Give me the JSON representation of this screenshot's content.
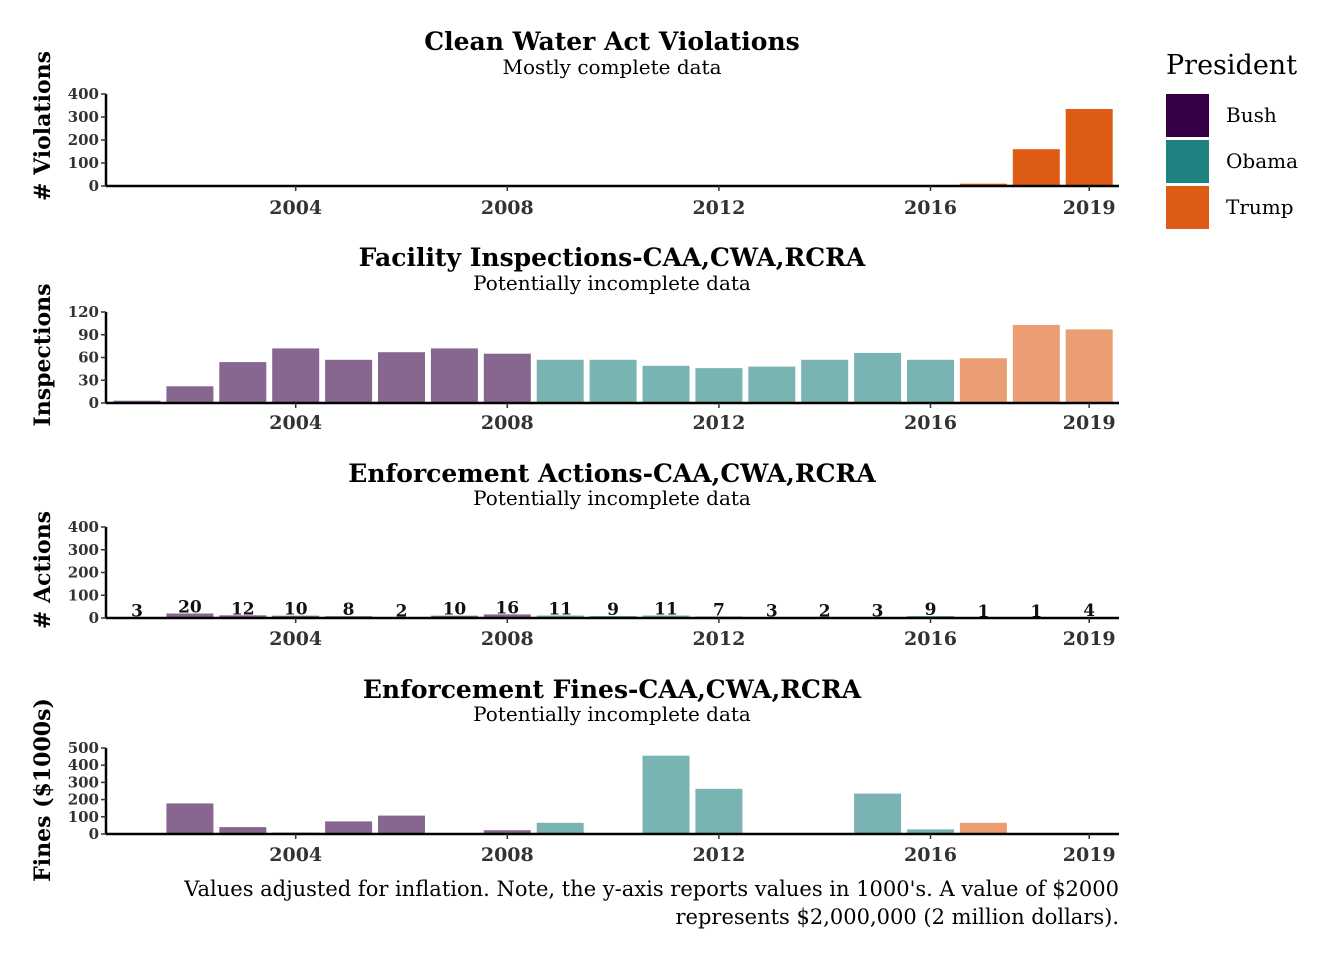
{
  "legend": {
    "title": "President",
    "items": [
      {
        "label": "Bush",
        "color": "#370045"
      },
      {
        "label": "Obama",
        "color": "#1f8280"
      },
      {
        "label": "Trump",
        "color": "#de5b16"
      }
    ]
  },
  "caption": {
    "line1": "Values adjusted for inflation. Note, the y-axis reports values in 1000's. A value of $2000",
    "line2": "represents $2,000,000 (2 million dollars)."
  },
  "chart_data": [
    {
      "type": "bar",
      "title": "Clean Water Act Violations",
      "subtitle": "Mostly complete data",
      "ylabel": "# Violations",
      "xlabel": "",
      "ylim": [
        0,
        400
      ],
      "yticks": [
        0,
        100,
        200,
        300,
        400
      ],
      "xticks": [
        "2004",
        "2008",
        "2012",
        "2016",
        "2019"
      ],
      "x": [
        2001,
        2002,
        2003,
        2004,
        2005,
        2006,
        2007,
        2008,
        2009,
        2010,
        2011,
        2012,
        2013,
        2014,
        2015,
        2016,
        2017,
        2018,
        2019
      ],
      "values": [
        0,
        0,
        0,
        0,
        0,
        0,
        0,
        0,
        0,
        0,
        0,
        0,
        0,
        0,
        0,
        0,
        10,
        160,
        335
      ],
      "president": [
        "Bush",
        "Bush",
        "Bush",
        "Bush",
        "Bush",
        "Bush",
        "Bush",
        "Bush",
        "Obama",
        "Obama",
        "Obama",
        "Obama",
        "Obama",
        "Obama",
        "Obama",
        "Obama",
        "Trump",
        "Trump",
        "Trump"
      ],
      "opacity": 1.0
    },
    {
      "type": "bar",
      "title": "Facility Inspections-CAA,CWA,RCRA",
      "subtitle": "Potentially incomplete data",
      "ylabel": "Inspections",
      "xlabel": "",
      "ylim": [
        0,
        120
      ],
      "yticks": [
        0,
        30,
        60,
        90,
        120
      ],
      "xticks": [
        "2004",
        "2008",
        "2012",
        "2016",
        "2019"
      ],
      "x": [
        2001,
        2002,
        2003,
        2004,
        2005,
        2006,
        2007,
        2008,
        2009,
        2010,
        2011,
        2012,
        2013,
        2014,
        2015,
        2016,
        2017,
        2018,
        2019
      ],
      "values": [
        3,
        22,
        54,
        72,
        57,
        67,
        72,
        65,
        57,
        57,
        49,
        46,
        48,
        57,
        66,
        57,
        59,
        103,
        97
      ],
      "president": [
        "Bush",
        "Bush",
        "Bush",
        "Bush",
        "Bush",
        "Bush",
        "Bush",
        "Bush",
        "Obama",
        "Obama",
        "Obama",
        "Obama",
        "Obama",
        "Obama",
        "Obama",
        "Obama",
        "Trump",
        "Trump",
        "Trump"
      ],
      "opacity": 0.6
    },
    {
      "type": "bar",
      "title": "Enforcement Actions-CAA,CWA,RCRA",
      "subtitle": "Potentially incomplete data",
      "ylabel": "# Actions",
      "xlabel": "",
      "ylim": [
        0,
        400
      ],
      "yticks": [
        0,
        100,
        200,
        300,
        400
      ],
      "xticks": [
        "2004",
        "2008",
        "2012",
        "2016",
        "2019"
      ],
      "x": [
        2001,
        2002,
        2003,
        2004,
        2005,
        2006,
        2007,
        2008,
        2009,
        2010,
        2011,
        2012,
        2013,
        2014,
        2015,
        2016,
        2017,
        2018,
        2019
      ],
      "values": [
        3,
        20,
        12,
        10,
        8,
        2,
        10,
        16,
        11,
        9,
        11,
        7,
        3,
        2,
        3,
        9,
        1,
        1,
        4
      ],
      "data_labels": [
        "3",
        "20",
        "12",
        "10",
        "8",
        "2",
        "10",
        "16",
        "11",
        "9",
        "11",
        "7",
        "3",
        "2",
        "3",
        "9",
        "1",
        "1",
        "4"
      ],
      "president": [
        "Bush",
        "Bush",
        "Bush",
        "Bush",
        "Bush",
        "Bush",
        "Bush",
        "Bush",
        "Obama",
        "Obama",
        "Obama",
        "Obama",
        "Obama",
        "Obama",
        "Obama",
        "Obama",
        "Trump",
        "Trump",
        "Trump"
      ],
      "opacity": 0.6
    },
    {
      "type": "bar",
      "title": "Enforcement Fines-CAA,CWA,RCRA",
      "subtitle": "Potentially incomplete data",
      "ylabel": "Fines ($1000s)",
      "xlabel": "",
      "ylim": [
        0,
        500
      ],
      "yticks": [
        0,
        100,
        200,
        300,
        400,
        500
      ],
      "xticks": [
        "2004",
        "2008",
        "2012",
        "2016",
        "2019"
      ],
      "x": [
        2001,
        2002,
        2003,
        2004,
        2005,
        2006,
        2007,
        2008,
        2009,
        2010,
        2011,
        2012,
        2013,
        2014,
        2015,
        2016,
        2017,
        2018,
        2019
      ],
      "values": [
        0,
        178,
        40,
        8,
        73,
        107,
        5,
        22,
        65,
        0,
        455,
        263,
        0,
        0,
        235,
        27,
        65,
        0,
        0
      ],
      "president": [
        "Bush",
        "Bush",
        "Bush",
        "Bush",
        "Bush",
        "Bush",
        "Bush",
        "Bush",
        "Obama",
        "Obama",
        "Obama",
        "Obama",
        "Obama",
        "Obama",
        "Obama",
        "Obama",
        "Trump",
        "Trump",
        "Trump"
      ],
      "opacity": 0.6
    }
  ]
}
